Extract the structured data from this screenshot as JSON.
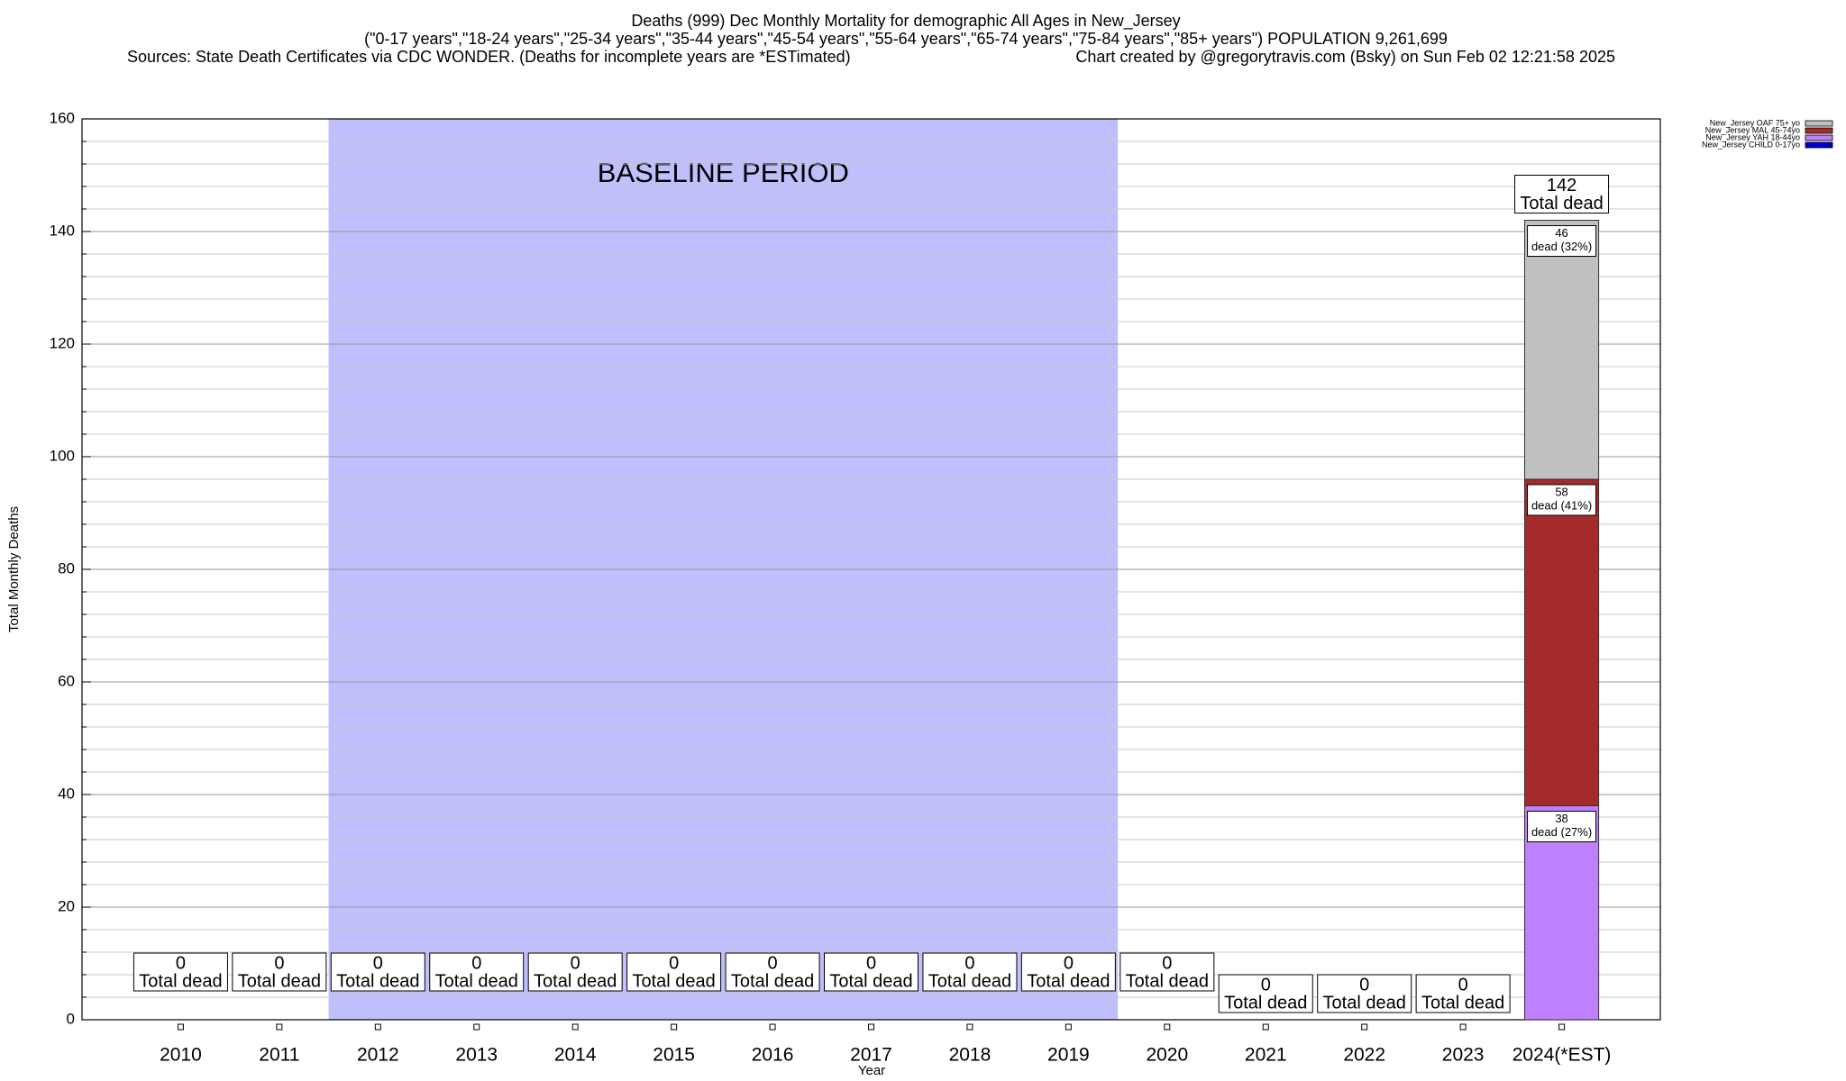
{
  "chart_data": {
    "type": "stacked_bar",
    "title": "Deaths (999) Dec Monthly Mortality for demographic All Ages in New_Jersey",
    "subtitle": "(\"0-17 years\",\"18-24 years\",\"25-34 years\",\"35-44 years\",\"45-54 years\",\"55-64 years\",\"65-74 years\",\"75-84 years\",\"85+ years\") POPULATION 9,261,699",
    "source": "Sources: State Death Certificates via CDC WONDER. (Deaths for incomplete years are *ESTimated)",
    "credit": "Chart created by @gregorytravis.com (Bsky) on Sun Feb 02 12:21:58 2025",
    "x_label": "Year",
    "y_label": "Total Monthly Deaths",
    "categories": [
      "2010",
      "2011",
      "2012",
      "2013",
      "2014",
      "2015",
      "2016",
      "2017",
      "2018",
      "2019",
      "2020",
      "2021",
      "2022",
      "2023",
      "2024(*EST)"
    ],
    "series": [
      {
        "name": "New_Jersey OAF 75+ yo",
        "color": "#c0c0c0",
        "values": [
          0,
          0,
          0,
          0,
          0,
          0,
          0,
          0,
          0,
          0,
          0,
          0,
          0,
          0,
          46
        ],
        "share_labels": [
          null,
          null,
          null,
          null,
          null,
          null,
          null,
          null,
          null,
          null,
          null,
          null,
          null,
          null,
          "dead (32%)"
        ]
      },
      {
        "name": "New_Jersey MAL 45-74yo",
        "color": "#a52a2a",
        "values": [
          0,
          0,
          0,
          0,
          0,
          0,
          0,
          0,
          0,
          0,
          0,
          0,
          0,
          0,
          58
        ],
        "share_labels": [
          null,
          null,
          null,
          null,
          null,
          null,
          null,
          null,
          null,
          null,
          null,
          null,
          null,
          null,
          "dead (41%)"
        ]
      },
      {
        "name": "New_Jersey YAH 18-44yo",
        "color": "#bf80ff",
        "values": [
          0,
          0,
          0,
          0,
          0,
          0,
          0,
          0,
          0,
          0,
          0,
          0,
          0,
          0,
          38
        ],
        "share_labels": [
          null,
          null,
          null,
          null,
          null,
          null,
          null,
          null,
          null,
          null,
          null,
          null,
          null,
          null,
          "dead (27%)"
        ]
      },
      {
        "name": "New_Jersey CHILD 0-17yo",
        "color": "#0000cc",
        "values": [
          0,
          0,
          0,
          0,
          0,
          0,
          0,
          0,
          0,
          0,
          0,
          0,
          0,
          0,
          0
        ]
      }
    ],
    "totals": [
      0,
      0,
      0,
      0,
      0,
      0,
      0,
      0,
      0,
      0,
      0,
      0,
      0,
      0,
      142
    ],
    "total_label": "Total dead",
    "baseline": {
      "label": "BASELINE PERIOD",
      "from": "2012",
      "to": "2019",
      "color": "#bfbffc"
    },
    "ylim": [
      0,
      160
    ],
    "yticks": [
      0,
      20,
      40,
      60,
      80,
      100,
      120,
      140,
      160
    ],
    "minor_yticks": [
      4,
      8,
      12,
      16,
      24,
      28,
      32,
      36,
      44,
      48,
      52,
      56,
      64,
      68,
      72,
      76,
      84,
      88,
      92,
      96,
      104,
      108,
      112,
      116,
      124,
      128,
      132,
      136,
      144,
      148,
      152,
      156
    ],
    "grid": true,
    "legend": "top-right"
  }
}
